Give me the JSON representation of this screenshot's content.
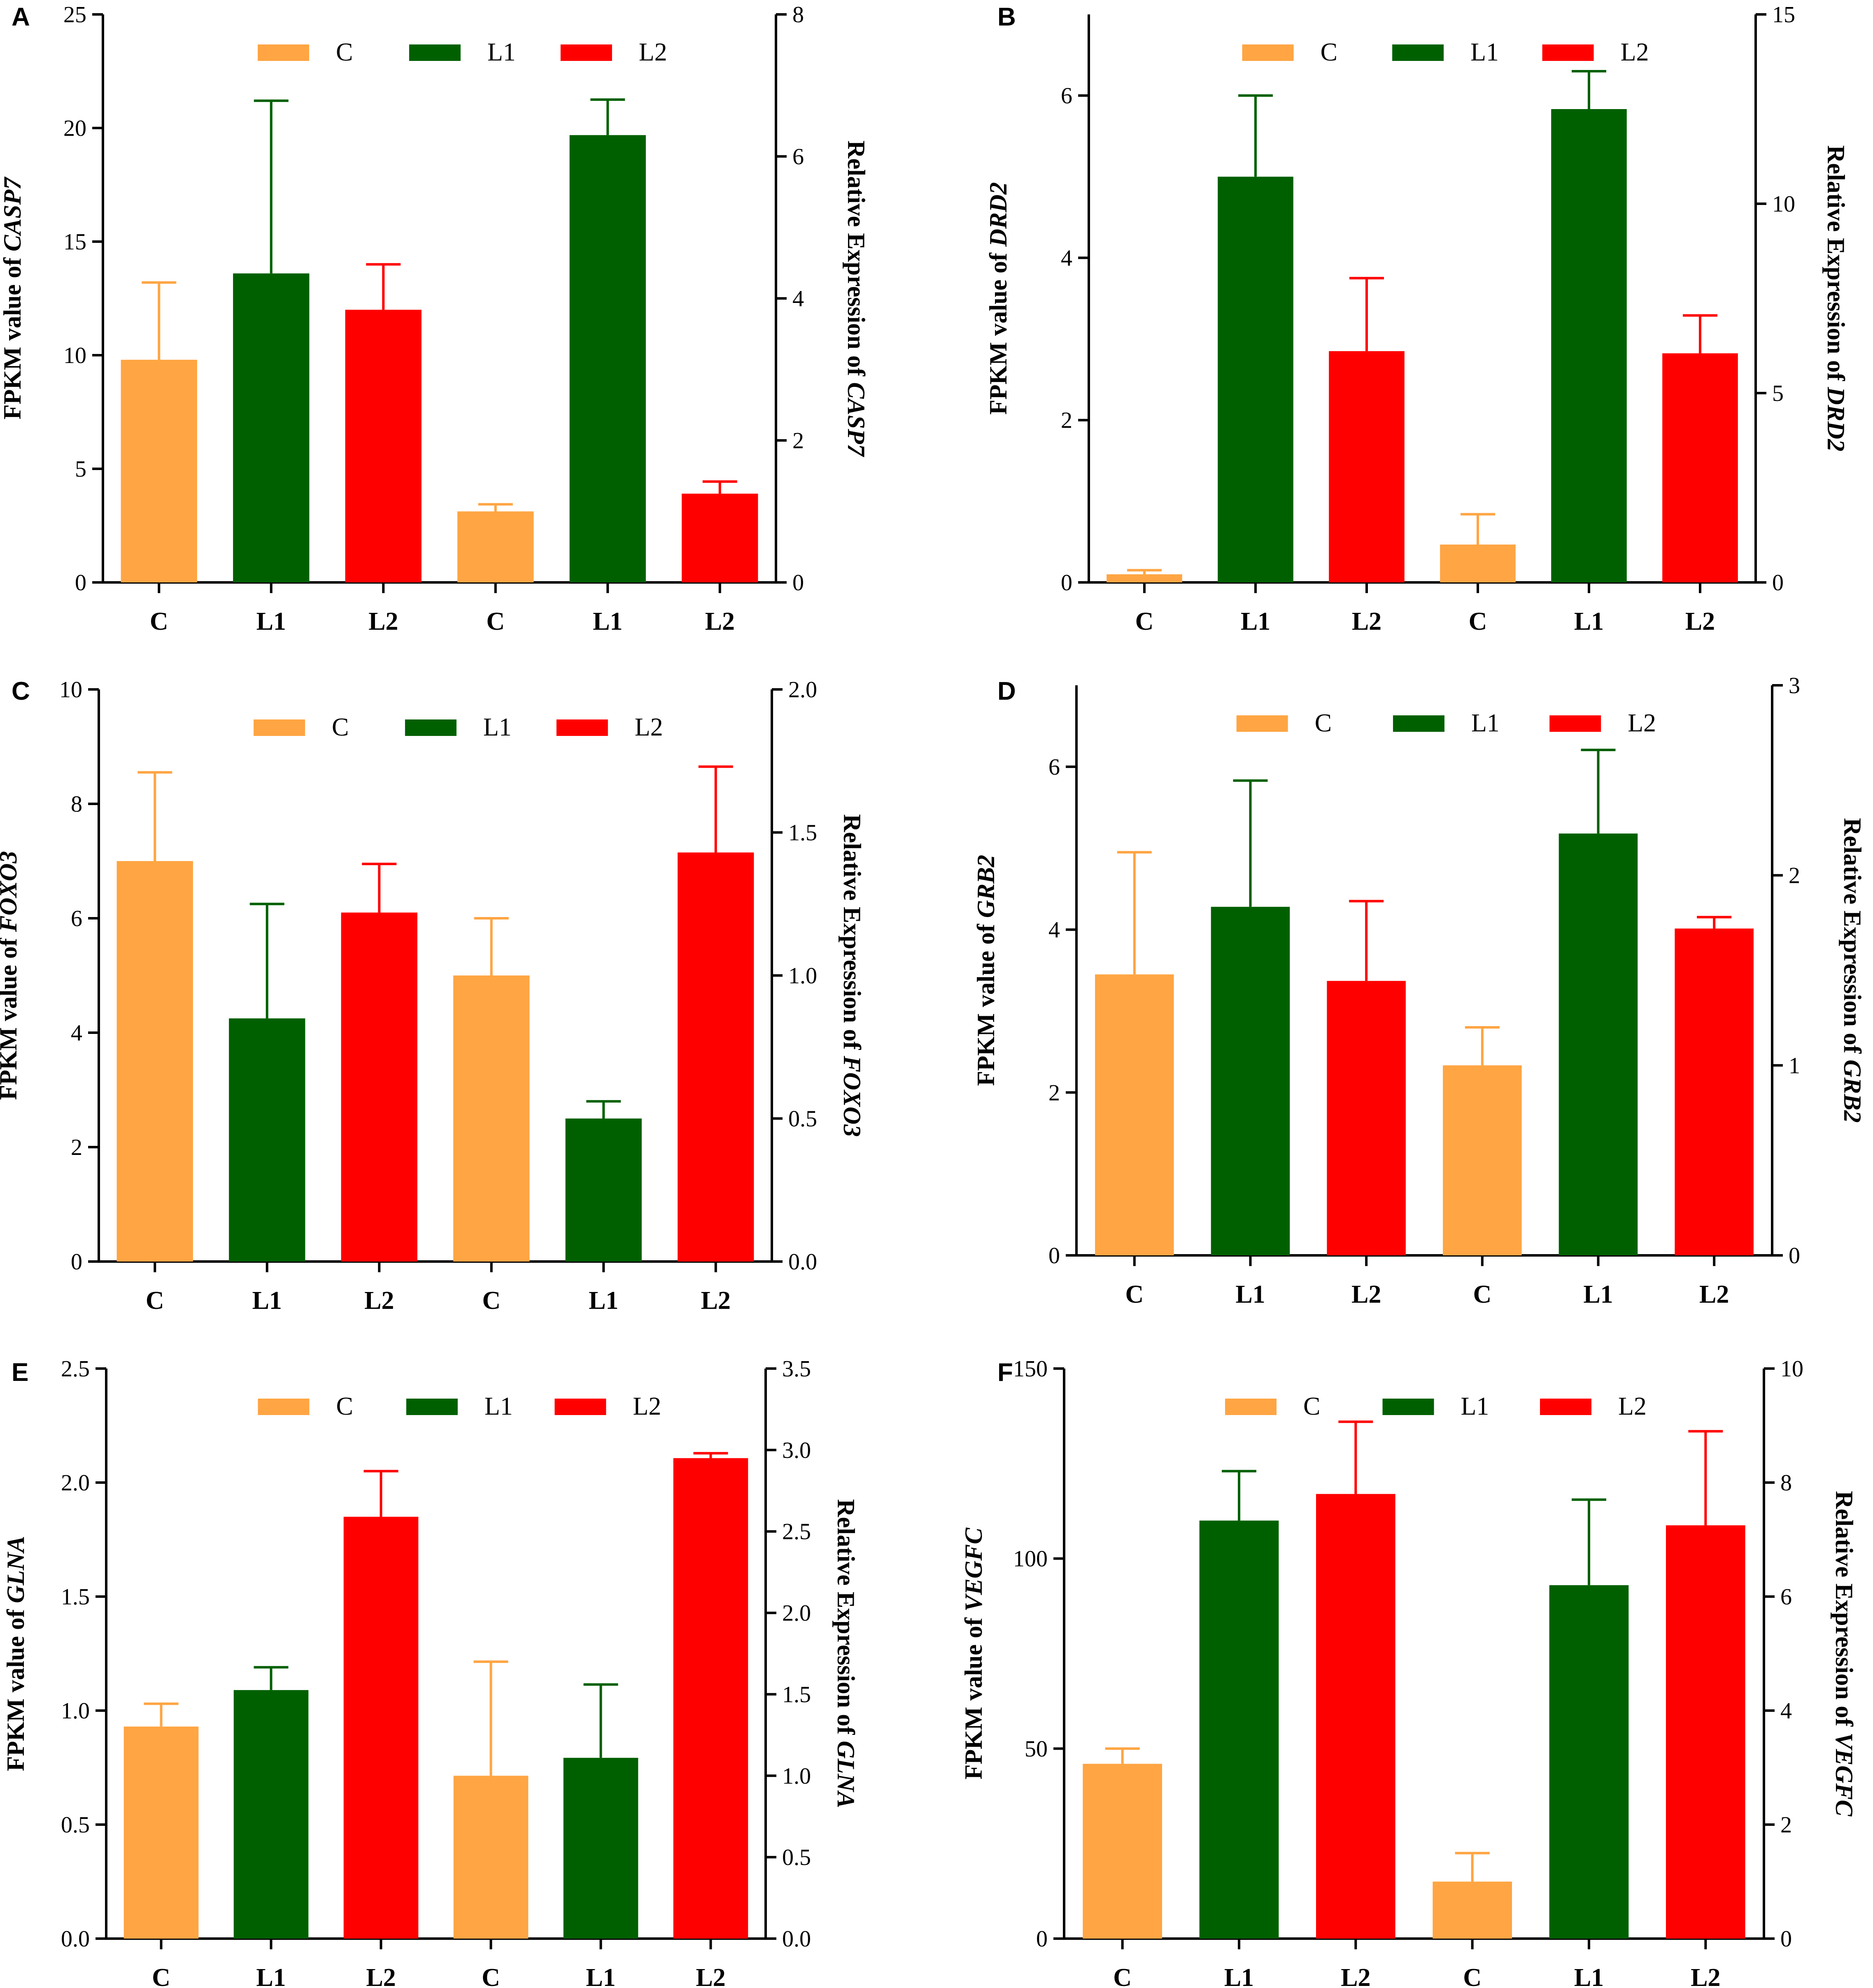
{
  "colors": {
    "C": "#ffa543",
    "L1": "#006000",
    "L2": "#ff0000"
  },
  "chart_data": [
    {
      "panel": "A",
      "type": "bar",
      "gene": "CASP7",
      "ylabel_left_prefix": "FPKM value of ",
      "ylabel_right_prefix": "Relative Expression of ",
      "legend": [
        "C",
        "L1",
        "L2"
      ],
      "categories": [
        "C",
        "L1",
        "L2",
        "C",
        "L1",
        "L2"
      ],
      "left_axis": {
        "min": 0,
        "max": 25,
        "ticks": [
          "0",
          "5",
          "10",
          "15",
          "20",
          "25"
        ]
      },
      "right_axis": {
        "min": 0,
        "max": 8,
        "ticks": [
          "0",
          "2",
          "4",
          "6",
          "8"
        ]
      },
      "fpkm": {
        "values": [
          9.8,
          13.6,
          12.0
        ],
        "errors": [
          3.4,
          7.6,
          2.0
        ]
      },
      "relative": {
        "values": [
          1.0,
          6.3,
          1.25
        ],
        "errors": [
          0.1,
          0.5,
          0.17
        ]
      }
    },
    {
      "panel": "B",
      "type": "bar",
      "gene": "DRD2",
      "ylabel_left_prefix": "FPKM value of ",
      "ylabel_right_prefix": "Relative Expression of ",
      "legend": [
        "C",
        "L1",
        "L2"
      ],
      "categories": [
        "C",
        "L1",
        "L2",
        "C",
        "L1",
        "L2"
      ],
      "left_axis": {
        "min": 0,
        "max": 7,
        "ticks": [
          "0",
          "2",
          "4",
          "6"
        ]
      },
      "right_axis": {
        "min": 0,
        "max": 15,
        "ticks": [
          "0",
          "5",
          "10",
          "15"
        ]
      },
      "fpkm": {
        "values": [
          0.1,
          5.0,
          2.85
        ],
        "errors": [
          0.05,
          1.0,
          0.9
        ]
      },
      "relative": {
        "values": [
          1.0,
          12.5,
          6.05
        ],
        "errors": [
          0.8,
          1.0,
          1.0
        ]
      }
    },
    {
      "panel": "C",
      "type": "bar",
      "gene": "FOXO3",
      "ylabel_left_prefix": "FPKM value of ",
      "ylabel_right_prefix": "Relative Expression of ",
      "legend": [
        "C",
        "L1",
        "L2"
      ],
      "categories": [
        "C",
        "L1",
        "L2",
        "C",
        "L1",
        "L2"
      ],
      "left_axis": {
        "min": 0,
        "max": 10,
        "ticks": [
          "0",
          "2",
          "4",
          "6",
          "8",
          "10"
        ]
      },
      "right_axis": {
        "min": 0,
        "max": 2.0,
        "ticks": [
          "0.0",
          "0.5",
          "1.0",
          "1.5",
          "2.0"
        ]
      },
      "fpkm": {
        "values": [
          7.0,
          4.25,
          6.1
        ],
        "errors": [
          1.55,
          2.0,
          0.85
        ]
      },
      "relative": {
        "values": [
          1.0,
          0.5,
          1.43
        ],
        "errors": [
          0.2,
          0.06,
          0.3
        ]
      }
    },
    {
      "panel": "D",
      "type": "bar",
      "gene": "GRB2",
      "ylabel_left_prefix": "FPKM value of ",
      "ylabel_right_prefix": "Relative Expression of ",
      "legend": [
        "C",
        "L1",
        "L2"
      ],
      "categories": [
        "C",
        "L1",
        "L2",
        "C",
        "L1",
        "L2"
      ],
      "left_axis": {
        "min": 0,
        "max": 7,
        "ticks": [
          "0",
          "2",
          "4",
          "6"
        ]
      },
      "right_axis": {
        "min": 0,
        "max": 3,
        "ticks": [
          "0",
          "1",
          "2",
          "3"
        ]
      },
      "fpkm": {
        "values": [
          3.45,
          4.28,
          3.37
        ],
        "errors": [
          1.5,
          1.55,
          0.98
        ]
      },
      "relative": {
        "values": [
          1.0,
          2.22,
          1.72
        ],
        "errors": [
          0.2,
          0.44,
          0.06
        ]
      }
    },
    {
      "panel": "E",
      "type": "bar",
      "gene": "GLNA",
      "ylabel_left_prefix": "FPKM value of ",
      "ylabel_right_prefix": "Relative Expression of ",
      "legend": [
        "C",
        "L1",
        "L2"
      ],
      "categories": [
        "C",
        "L1",
        "L2",
        "C",
        "L1",
        "L2"
      ],
      "left_axis": {
        "min": 0,
        "max": 2.5,
        "ticks": [
          "0.0",
          "0.5",
          "1.0",
          "1.5",
          "2.0",
          "2.5"
        ]
      },
      "right_axis": {
        "min": 0,
        "max": 3.5,
        "ticks": [
          "0.0",
          "0.5",
          "1.0",
          "1.5",
          "2.0",
          "2.5",
          "3.0",
          "3.5"
        ]
      },
      "fpkm": {
        "values": [
          0.93,
          1.09,
          1.85
        ],
        "errors": [
          0.1,
          0.1,
          0.2
        ]
      },
      "relative": {
        "values": [
          1.0,
          1.11,
          2.95
        ],
        "errors": [
          0.7,
          0.45,
          0.03
        ]
      }
    },
    {
      "panel": "F",
      "type": "bar",
      "gene": "VEGFC",
      "ylabel_left_prefix": "FPKM value of ",
      "ylabel_right_prefix": "Relative Expression of ",
      "legend": [
        "C",
        "L1",
        "L2"
      ],
      "categories": [
        "C",
        "L1",
        "L2",
        "C",
        "L1",
        "L2"
      ],
      "left_axis": {
        "min": 0,
        "max": 150,
        "ticks": [
          "0",
          "50",
          "100",
          "150"
        ]
      },
      "right_axis": {
        "min": 0,
        "max": 10,
        "ticks": [
          "0",
          "2",
          "4",
          "6",
          "8",
          "10"
        ]
      },
      "fpkm": {
        "values": [
          46,
          110,
          117
        ],
        "errors": [
          4,
          13,
          19
        ]
      },
      "relative": {
        "values": [
          1.0,
          6.2,
          7.25
        ],
        "errors": [
          0.5,
          1.5,
          1.65
        ]
      }
    }
  ]
}
